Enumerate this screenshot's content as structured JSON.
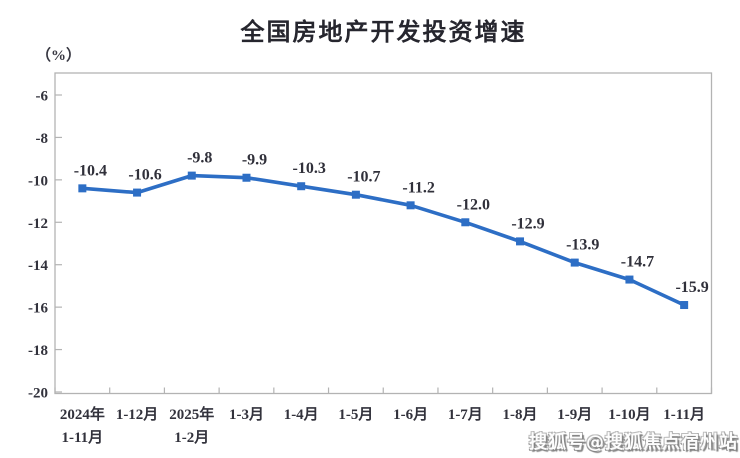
{
  "chart_data": {
    "type": "line",
    "title": "全国房地产开发投资增速",
    "ylabel": "（%）",
    "xlabel": "",
    "categories": [
      "2024年\n1-11月",
      "1-12月",
      "2025年\n1-2月",
      "1-3月",
      "1-4月",
      "1-5月",
      "1-6月",
      "1-7月",
      "1-8月",
      "1-9月",
      "1-10月",
      "1-11月"
    ],
    "values": [
      -10.4,
      -10.6,
      -9.8,
      -9.9,
      -10.3,
      -10.7,
      -11.2,
      -12.0,
      -12.9,
      -13.9,
      -14.7,
      -15.9
    ],
    "data_labels": [
      "-10.4",
      "-10.6",
      "-9.8",
      "-9.9",
      "-10.3",
      "-10.7",
      "-11.2",
      "-12.0",
      "-12.9",
      "-13.9",
      "-14.7",
      "-15.9"
    ],
    "y_ticks": [
      -6,
      -8,
      -10,
      -12,
      -14,
      -16,
      -18,
      -20
    ],
    "ylim": [
      -20,
      -4.8
    ],
    "grid": false,
    "legend": "none",
    "marker": "square",
    "line_color": "#2d6ec5",
    "label_color": "#30303a",
    "axis_color": "#b3b3b3",
    "title_color": "#26262e"
  },
  "watermark": {
    "text": "搜狐号@搜狐焦点宿州站"
  }
}
